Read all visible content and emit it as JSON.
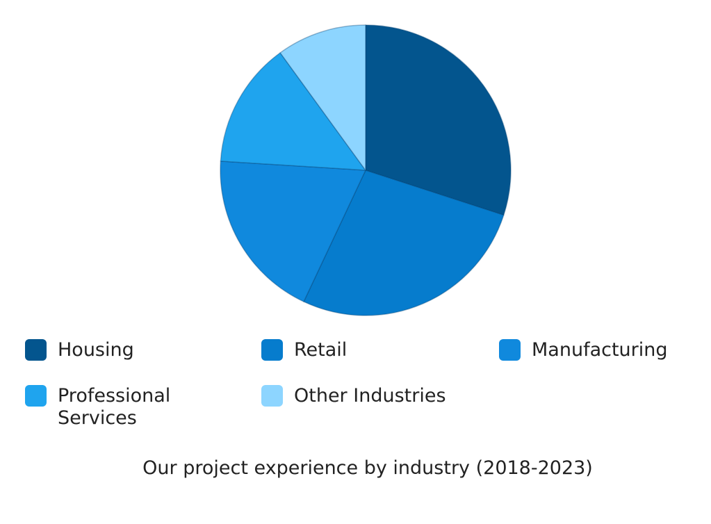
{
  "chart_data": {
    "type": "pie",
    "title": "",
    "caption": "Our project experience by industry (2018-2023)",
    "legend_position": "bottom",
    "slices": [
      {
        "label": "Housing",
        "value": 30,
        "color": "#03558e"
      },
      {
        "label": "Retail",
        "value": 27,
        "color": "#067ccd"
      },
      {
        "label": "Manufacturing",
        "value": 19,
        "color": "#1089dd"
      },
      {
        "label": "Professional\nServices",
        "value": 14,
        "color": "#1fa4ee"
      },
      {
        "label": "Other Industries",
        "value": 10,
        "color": "#8dd5ff"
      }
    ]
  }
}
